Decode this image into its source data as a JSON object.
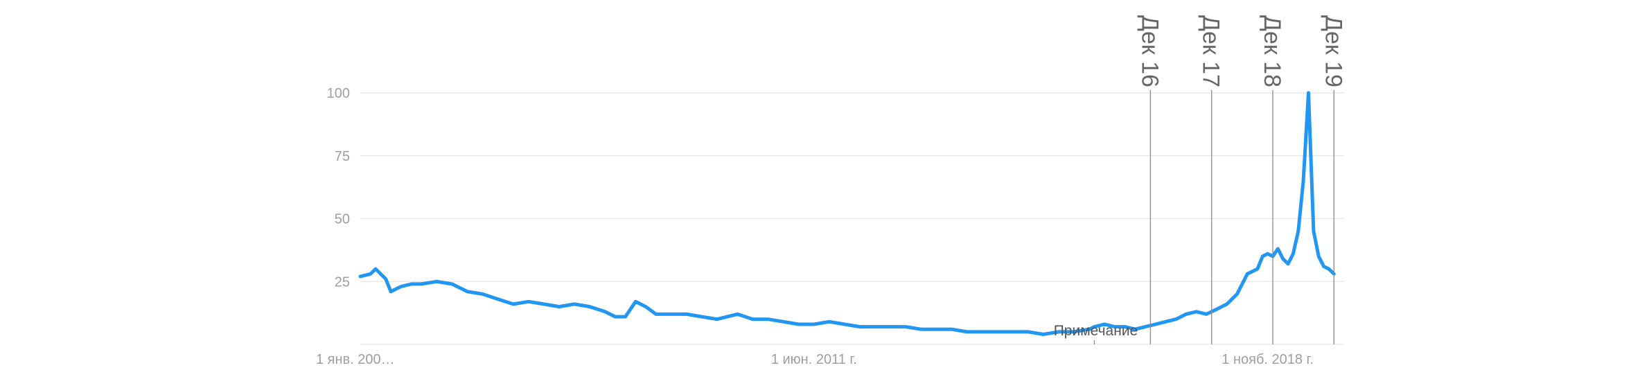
{
  "chart_data": {
    "type": "line",
    "title": "",
    "xlabel": "",
    "ylabel": "",
    "x_start": "2004-01",
    "x_end": "2020-02",
    "ylim": [
      0,
      100
    ],
    "yticks": [
      25,
      50,
      75,
      100
    ],
    "x_tick_labels": [
      {
        "at": "2004-01",
        "label": "1 янв. 200…"
      },
      {
        "at": "2011-06",
        "label": "1 июн. 2011 г."
      },
      {
        "at": "2018-11",
        "label": "1 нояб. 2018 г."
      }
    ],
    "grid": true,
    "legend": "none",
    "annotations": [
      {
        "date": "2016-12",
        "label": "Дек 16"
      },
      {
        "date": "2017-12",
        "label": "Дек 17"
      },
      {
        "date": "2018-12",
        "label": "Дек 18"
      },
      {
        "date": "2019-12",
        "label": "Дек 19"
      }
    ],
    "note": {
      "date": "2016-01",
      "label": "Примечание"
    },
    "series": [
      {
        "color": "#2196f3",
        "points": [
          [
            "2004-01",
            27
          ],
          [
            "2004-03",
            28
          ],
          [
            "2004-04",
            30
          ],
          [
            "2004-06",
            26
          ],
          [
            "2004-07",
            21
          ],
          [
            "2004-09",
            23
          ],
          [
            "2004-11",
            24
          ],
          [
            "2005-01",
            24
          ],
          [
            "2005-04",
            25
          ],
          [
            "2005-07",
            24
          ],
          [
            "2005-10",
            21
          ],
          [
            "2006-01",
            20
          ],
          [
            "2006-04",
            18
          ],
          [
            "2006-07",
            16
          ],
          [
            "2006-10",
            17
          ],
          [
            "2007-01",
            16
          ],
          [
            "2007-04",
            15
          ],
          [
            "2007-07",
            16
          ],
          [
            "2007-10",
            15
          ],
          [
            "2008-01",
            13
          ],
          [
            "2008-03",
            11
          ],
          [
            "2008-05",
            11
          ],
          [
            "2008-07",
            17
          ],
          [
            "2008-09",
            15
          ],
          [
            "2008-11",
            12
          ],
          [
            "2009-02",
            12
          ],
          [
            "2009-05",
            12
          ],
          [
            "2009-08",
            11
          ],
          [
            "2009-11",
            10
          ],
          [
            "2010-01",
            11
          ],
          [
            "2010-03",
            12
          ],
          [
            "2010-06",
            10
          ],
          [
            "2010-09",
            10
          ],
          [
            "2010-12",
            9
          ],
          [
            "2011-03",
            8
          ],
          [
            "2011-06",
            8
          ],
          [
            "2011-09",
            9
          ],
          [
            "2011-12",
            8
          ],
          [
            "2012-03",
            7
          ],
          [
            "2012-06",
            7
          ],
          [
            "2012-09",
            7
          ],
          [
            "2012-12",
            7
          ],
          [
            "2013-03",
            6
          ],
          [
            "2013-06",
            6
          ],
          [
            "2013-09",
            6
          ],
          [
            "2013-12",
            5
          ],
          [
            "2014-03",
            5
          ],
          [
            "2014-06",
            5
          ],
          [
            "2014-09",
            5
          ],
          [
            "2014-12",
            5
          ],
          [
            "2015-03",
            4
          ],
          [
            "2015-06",
            5
          ],
          [
            "2015-09",
            5
          ],
          [
            "2015-12",
            6
          ],
          [
            "2016-01",
            7
          ],
          [
            "2016-03",
            8
          ],
          [
            "2016-05",
            7
          ],
          [
            "2016-07",
            7
          ],
          [
            "2016-09",
            6
          ],
          [
            "2016-11",
            7
          ],
          [
            "2017-01",
            8
          ],
          [
            "2017-03",
            9
          ],
          [
            "2017-05",
            10
          ],
          [
            "2017-07",
            12
          ],
          [
            "2017-09",
            13
          ],
          [
            "2017-11",
            12
          ],
          [
            "2018-01",
            14
          ],
          [
            "2018-03",
            16
          ],
          [
            "2018-05",
            20
          ],
          [
            "2018-07",
            28
          ],
          [
            "2018-09",
            30
          ],
          [
            "2018-10",
            35
          ],
          [
            "2018-11",
            36
          ],
          [
            "2018-12",
            35
          ],
          [
            "2019-01",
            38
          ],
          [
            "2019-02",
            34
          ],
          [
            "2019-03",
            32
          ],
          [
            "2019-04",
            36
          ],
          [
            "2019-05",
            45
          ],
          [
            "2019-06",
            65
          ],
          [
            "2019-07",
            100
          ],
          [
            "2019-08",
            45
          ],
          [
            "2019-09",
            35
          ],
          [
            "2019-10",
            31
          ],
          [
            "2019-11",
            30
          ],
          [
            "2019-12",
            28
          ]
        ]
      }
    ]
  }
}
